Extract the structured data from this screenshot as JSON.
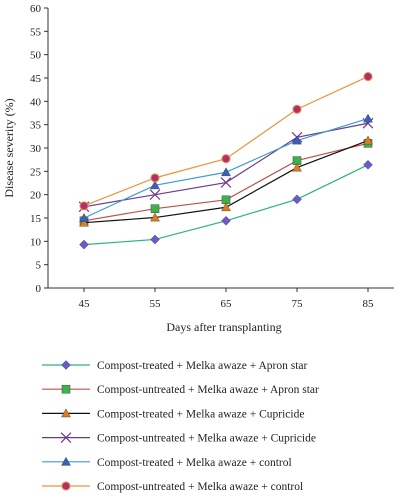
{
  "chart_data": {
    "type": "line",
    "title": "",
    "xlabel": "Days after transplanting",
    "ylabel": "Disease severity (%)",
    "x": [
      45,
      55,
      65,
      75,
      85
    ],
    "ylim": [
      0,
      60
    ],
    "yticks": [
      0,
      5,
      10,
      15,
      20,
      25,
      30,
      35,
      40,
      45,
      50,
      55,
      60
    ],
    "grid": false,
    "legend_position": "bottom",
    "series": [
      {
        "name": "Compost-treated + Melka awaze + Apron star",
        "marker": "diamond",
        "color": "#2ab57d",
        "marker_color": "#6a5acd",
        "values": [
          9.3,
          10.4,
          14.4,
          19.0,
          26.4
        ]
      },
      {
        "name": "Compost-untreated + Melka awaze + Apron star",
        "marker": "square",
        "color": "#c0504d",
        "marker_color": "#3cb34a",
        "values": [
          14.4,
          17.0,
          18.9,
          27.3,
          31.0
        ]
      },
      {
        "name": "Compost-treated + Melka awaze + Cupricide",
        "marker": "triangle",
        "color": "#111111",
        "marker_color": "#e07b1f",
        "values": [
          14.0,
          15.1,
          17.3,
          25.8,
          31.6
        ]
      },
      {
        "name": "Compost-untreated + Melka awaze + Cupricide",
        "marker": "x",
        "color": "#6c3a8a",
        "marker_color": "#6c3a8a",
        "values": [
          17.4,
          20.0,
          22.6,
          32.3,
          35.3
        ]
      },
      {
        "name": "Compost-treated + Melka awaze + control",
        "marker": "triangle",
        "color": "#3f9ed0",
        "marker_color": "#3b5fc0",
        "values": [
          15.0,
          22.0,
          24.8,
          31.6,
          36.3
        ]
      },
      {
        "name": "Compost-untreated + Melka awaze + control",
        "marker": "circle",
        "color": "#f0913a",
        "marker_color": "#b0306f",
        "values": [
          17.6,
          23.6,
          27.7,
          38.3,
          45.3
        ]
      }
    ]
  }
}
